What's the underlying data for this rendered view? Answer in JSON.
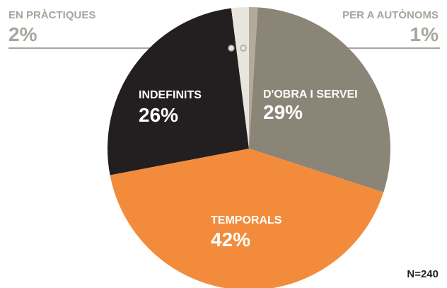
{
  "chart_data": {
    "type": "pie",
    "categories": [
      "PER A AUTÒNOMS",
      "D'OBRA I SERVEI",
      "TEMPORALS",
      "INDEFINITS",
      "EN PRÀCTIQUES"
    ],
    "values": [
      1,
      29,
      42,
      26,
      2
    ],
    "value_labels": [
      "1%",
      "29%",
      "42%",
      "26%",
      "2%"
    ],
    "colors": [
      "#b3aa9b",
      "#8b8577",
      "#f28c3c",
      "#231f20",
      "#e8e4de"
    ],
    "note": "N=240"
  }
}
